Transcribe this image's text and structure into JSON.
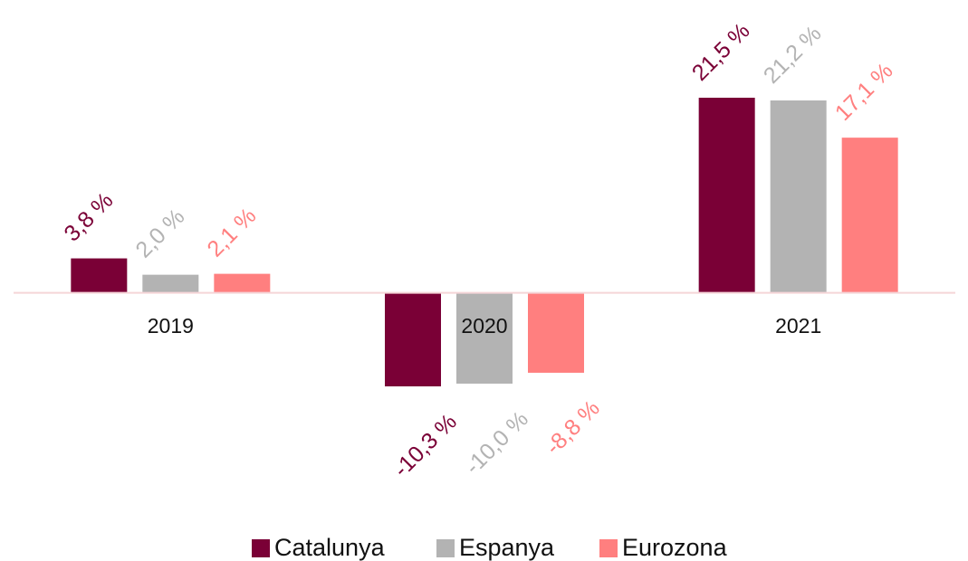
{
  "chart_data": {
    "type": "bar",
    "categories": [
      "2019",
      "2020",
      "2021"
    ],
    "series": [
      {
        "name": "Catalunya",
        "color": "#7a0036",
        "values": [
          3.8,
          -10.3,
          21.5
        ],
        "value_labels": [
          "3,8 %",
          "-10,3 %",
          "21,5 %"
        ]
      },
      {
        "name": "Espanya",
        "color": "#b3b3b3",
        "values": [
          2.0,
          -10.0,
          21.2
        ],
        "value_labels": [
          "2,0 %",
          "-10,0 %",
          "21,2 %"
        ]
      },
      {
        "name": "Eurozona",
        "color": "#ff7f7f",
        "values": [
          2.1,
          -8.8,
          17.1
        ],
        "value_labels": [
          "2,1 %",
          "-8,8 %",
          "17,1 %"
        ]
      }
    ],
    "legend": "bottom"
  }
}
